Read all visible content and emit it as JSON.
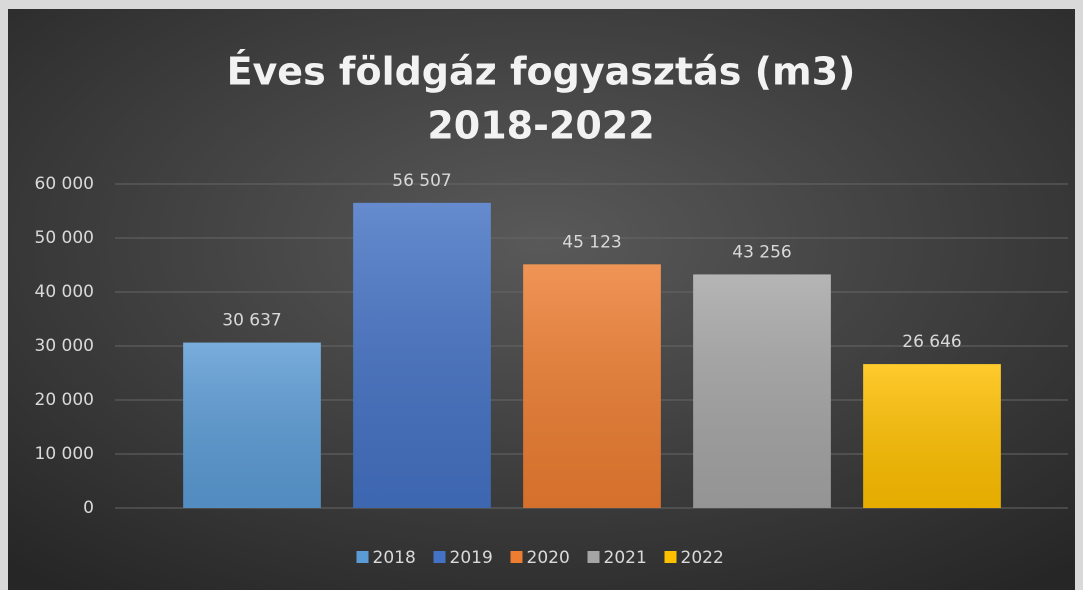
{
  "chart_data": {
    "type": "bar",
    "title": [
      "Éves földgáz fogyasztás (m3)",
      "2018-2022"
    ],
    "categories": [
      "2018",
      "2019",
      "2020",
      "2021",
      "2022"
    ],
    "values": [
      30637,
      56507,
      45123,
      43256,
      26646
    ],
    "value_labels": [
      "30 637",
      "56 507",
      "45 123",
      "43 256",
      "26 646"
    ],
    "colors": [
      "#5b9bd5",
      "#4472c4",
      "#ed7d31",
      "#a5a5a5",
      "#ffc000"
    ],
    "ylim": [
      0,
      60000
    ],
    "yticks": [
      0,
      {
        "value": 10000,
        "label": "10 000"
      },
      {
        "value": 20000,
        "label": "20 000"
      },
      {
        "value": 30000,
        "label": "30 000"
      },
      {
        "value": 40000,
        "label": "40 000"
      },
      {
        "value": 50000,
        "label": "50 000"
      },
      {
        "value": 60000,
        "label": "60 000"
      }
    ],
    "grid": true,
    "legend": "bottom"
  }
}
